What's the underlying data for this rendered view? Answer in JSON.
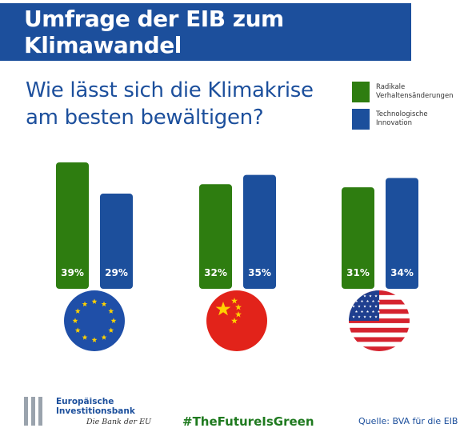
{
  "banner": {
    "title": "Umfrage der EIB zum Klimawandel"
  },
  "question": {
    "line1": "Wie lässt sich die Klimakrise",
    "line2": "am besten bewältigen?"
  },
  "colors": {
    "green": "#2e7d10",
    "blue": "#1c4f9c",
    "banner": "#1c4f9c",
    "hashtag": "#1f7a1f"
  },
  "chart_data": {
    "type": "bar",
    "title": "Wie lässt sich die Klimakrise am besten bewältigen?",
    "categories": [
      "EU",
      "China",
      "USA"
    ],
    "category_icons": [
      "eu-flag-icon",
      "china-flag-icon",
      "usa-flag-icon"
    ],
    "series": [
      {
        "name": "Radikale Verhaltensänderungen",
        "color": "#2e7d10",
        "values": [
          39,
          32,
          31
        ]
      },
      {
        "name": "Technologische Innovation",
        "color": "#1c4f9c",
        "values": [
          29,
          35,
          34
        ]
      }
    ],
    "value_suffix": "%",
    "ylim": [
      0,
      39
    ],
    "grid": false,
    "legend_position": "top-right",
    "xlabel": "",
    "ylabel": ""
  },
  "legend": {
    "items": [
      {
        "label_line1": "Radikale",
        "label_line2": "Verhaltensänderungen"
      },
      {
        "label_line1": "Technologische",
        "label_line2": "Innovation"
      }
    ]
  },
  "footer": {
    "logo_line1": "Europäische",
    "logo_line2": "Investitionsbank",
    "logo_tagline": "Die Bank der EU",
    "hashtag": "#TheFutureIsGreen",
    "source": "Quelle: BVA für die EIB"
  }
}
